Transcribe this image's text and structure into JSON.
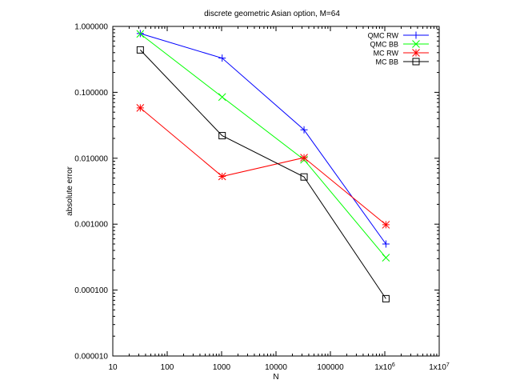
{
  "chart_data": {
    "type": "line",
    "title": "discrete geometric Asian option, M=64",
    "xlabel": "N",
    "ylabel": "absolute error",
    "xscale": "log",
    "yscale": "log",
    "xlim": [
      10,
      10000000
    ],
    "ylim": [
      1e-05,
      1
    ],
    "grid": false,
    "legend_position": "top-right",
    "x_ticks": [
      {
        "value": 10,
        "label": "10"
      },
      {
        "value": 100,
        "label": "100"
      },
      {
        "value": 1000,
        "label": "1000"
      },
      {
        "value": 10000,
        "label": "10000"
      },
      {
        "value": 100000,
        "label": "100000"
      },
      {
        "value": 1000000,
        "label": "1x10",
        "sup": "6"
      },
      {
        "value": 10000000,
        "label": "1x10",
        "sup": "7"
      }
    ],
    "y_ticks": [
      {
        "value": 1,
        "label": "1.000000"
      },
      {
        "value": 0.1,
        "label": "0.100000"
      },
      {
        "value": 0.01,
        "label": "0.010000"
      },
      {
        "value": 0.001,
        "label": "0.001000"
      },
      {
        "value": 0.0001,
        "label": "0.000100"
      },
      {
        "value": 1e-05,
        "label": "0.000010"
      }
    ],
    "x": [
      32,
      1024,
      32768,
      1048576
    ],
    "series": [
      {
        "name": "QMC RW",
        "color": "#0000ff",
        "marker": "plus",
        "values": [
          0.78,
          0.33,
          0.027,
          0.0005
        ]
      },
      {
        "name": "QMC BB",
        "color": "#00ff00",
        "marker": "cross",
        "values": [
          0.77,
          0.085,
          0.0095,
          0.00031
        ]
      },
      {
        "name": "MC RW",
        "color": "#ff0000",
        "marker": "star",
        "values": [
          0.058,
          0.0053,
          0.0102,
          0.00098
        ]
      },
      {
        "name": "MC BB",
        "color": "#000000",
        "marker": "square",
        "values": [
          0.44,
          0.022,
          0.0052,
          7.4e-05
        ]
      }
    ]
  }
}
